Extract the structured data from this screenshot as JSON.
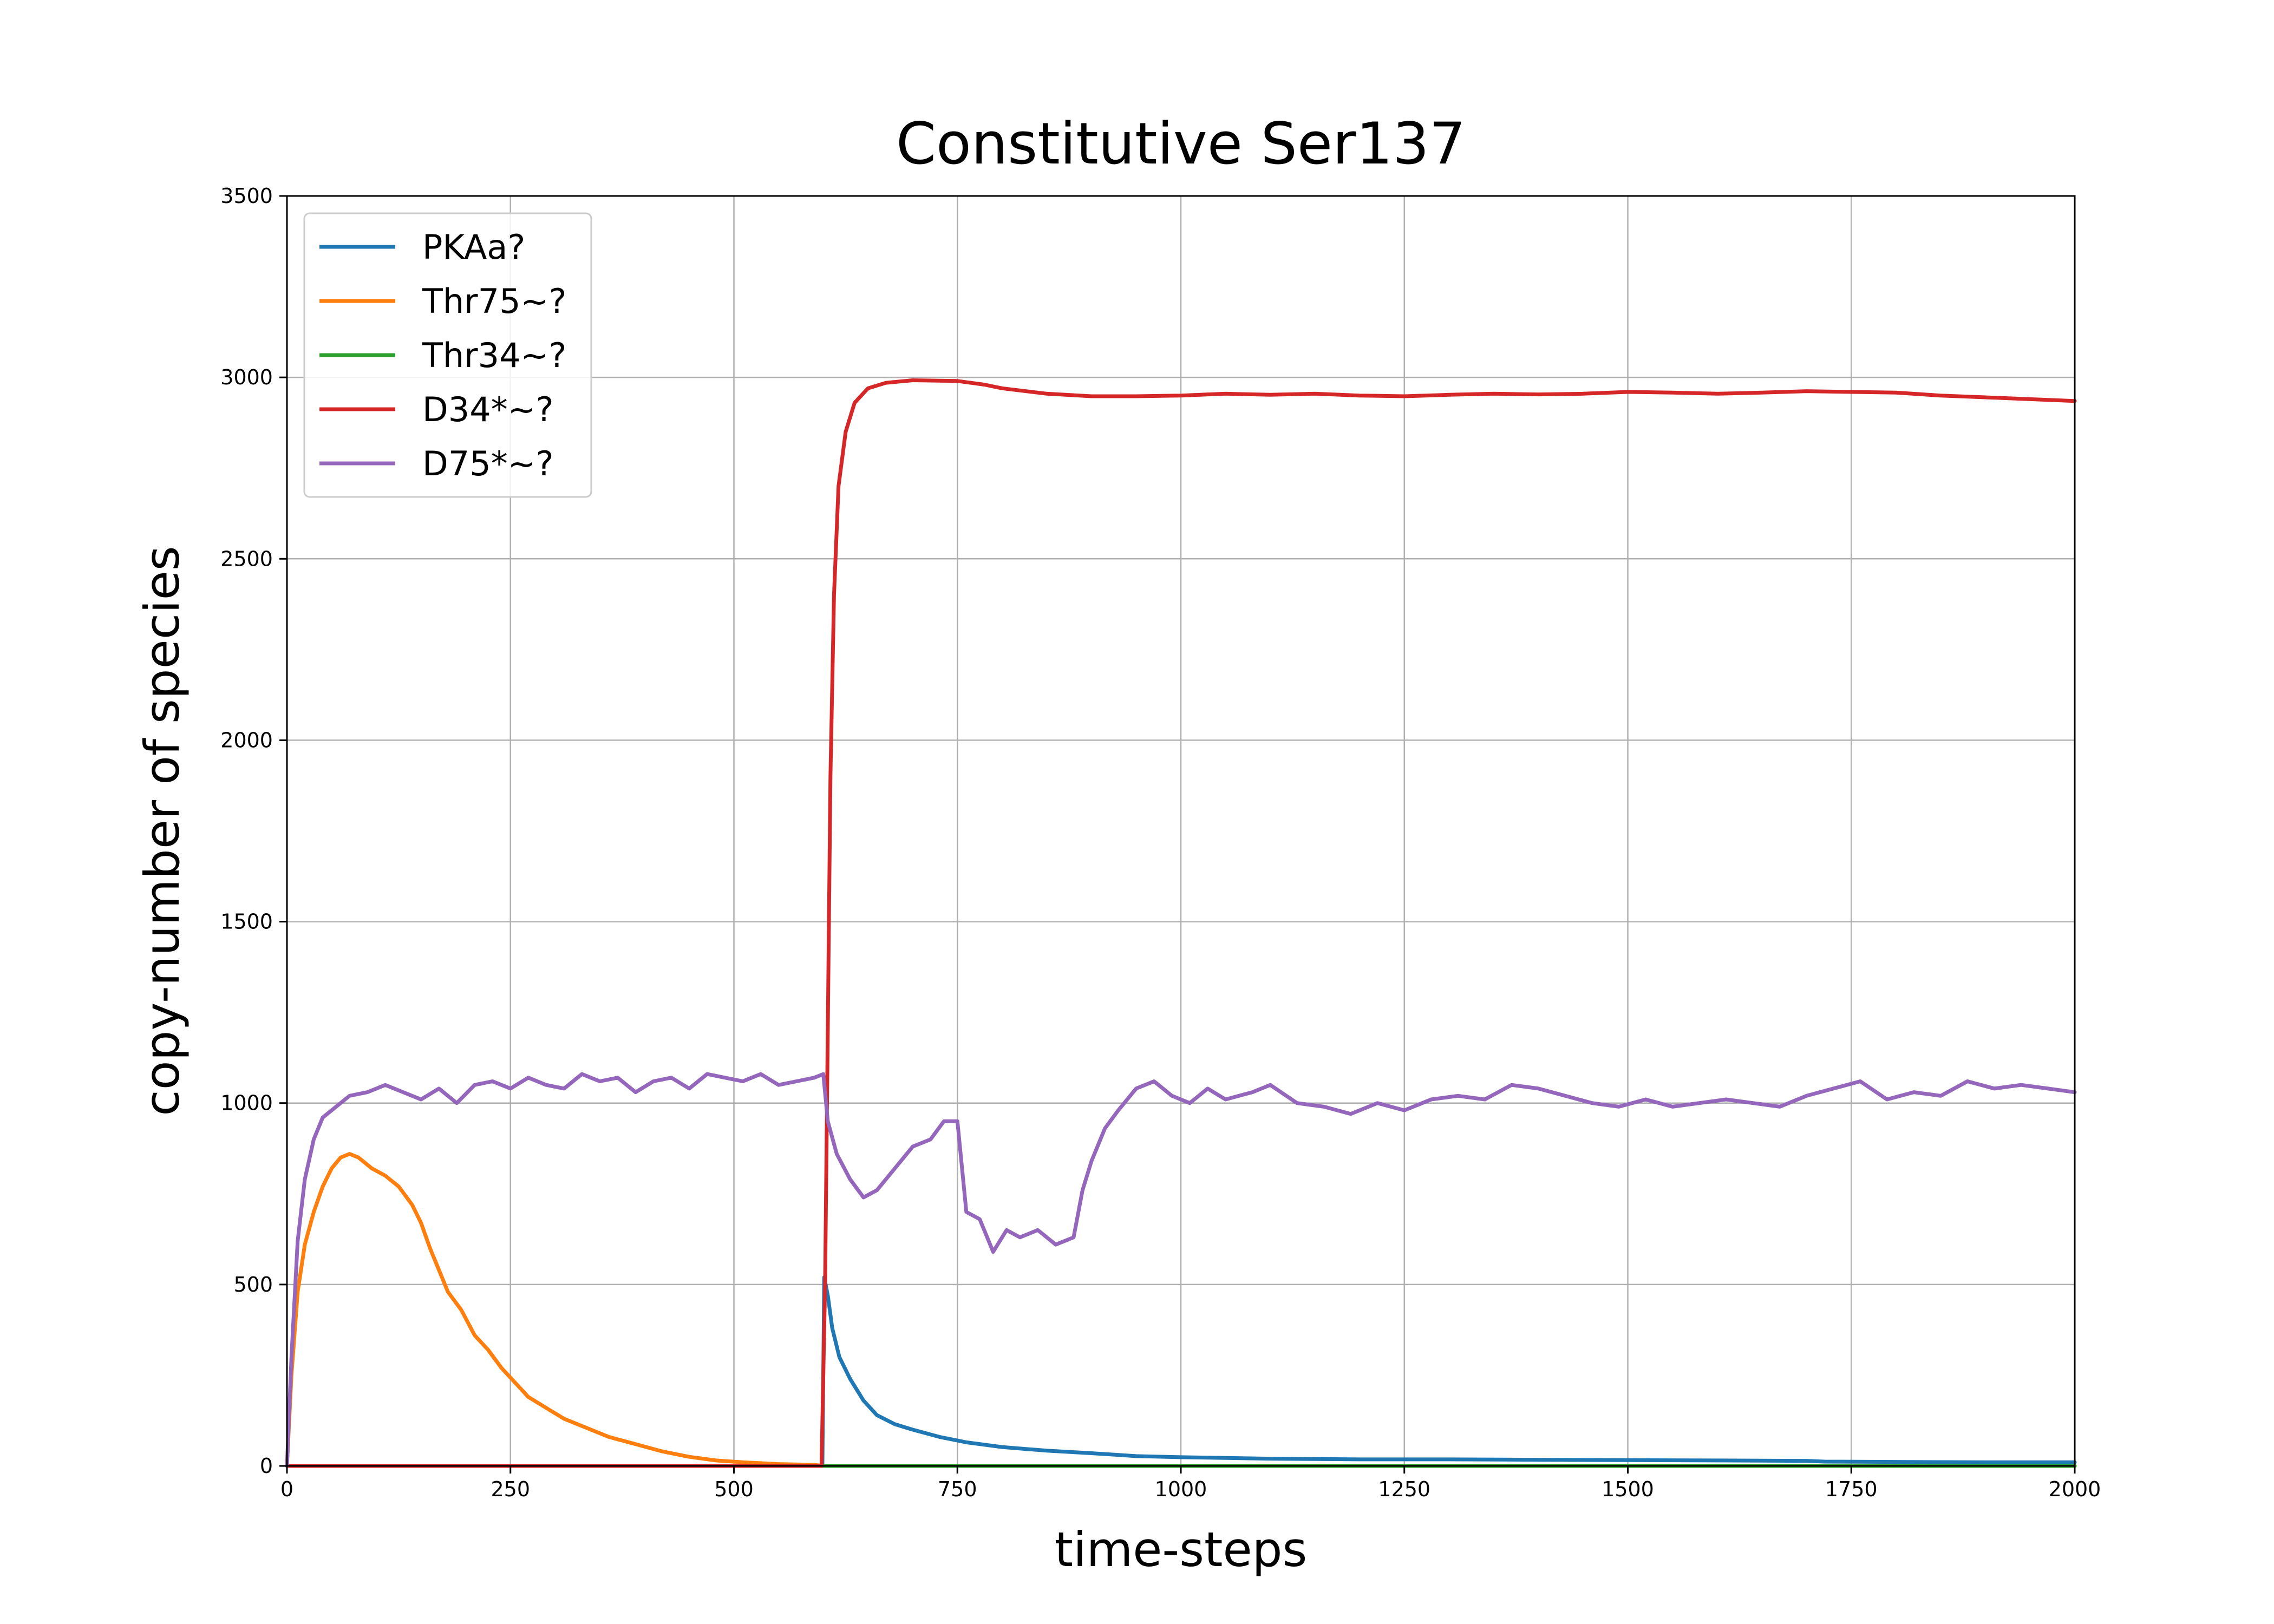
{
  "chart_data": {
    "type": "line",
    "title": "Constitutive Ser137",
    "xlabel": "time-steps",
    "ylabel": "copy-number of species",
    "xlim": [
      0,
      2000
    ],
    "ylim": [
      0,
      3500
    ],
    "xticks": [
      "0",
      "250",
      "500",
      "750",
      "1000",
      "1250",
      "1500",
      "1750",
      "2000"
    ],
    "yticks": [
      "0",
      "500",
      "1000",
      "1500",
      "2000",
      "2500",
      "3000",
      "3500"
    ],
    "grid": true,
    "legend_position": "top-left",
    "series": [
      {
        "name": "PKAa?",
        "color": "#1f77b4",
        "points": [
          [
            0,
            0
          ],
          [
            599,
            0
          ],
          [
            601,
            520
          ],
          [
            605,
            470
          ],
          [
            610,
            380
          ],
          [
            618,
            300
          ],
          [
            630,
            240
          ],
          [
            645,
            180
          ],
          [
            660,
            140
          ],
          [
            680,
            115
          ],
          [
            700,
            100
          ],
          [
            730,
            80
          ],
          [
            760,
            65
          ],
          [
            800,
            52
          ],
          [
            850,
            42
          ],
          [
            900,
            35
          ],
          [
            950,
            27
          ],
          [
            1000,
            24
          ],
          [
            1100,
            20
          ],
          [
            1200,
            18
          ],
          [
            1300,
            18
          ],
          [
            1400,
            17
          ],
          [
            1500,
            16
          ],
          [
            1600,
            15
          ],
          [
            1700,
            14
          ],
          [
            1720,
            12
          ],
          [
            1800,
            11
          ],
          [
            1900,
            10
          ],
          [
            2000,
            10
          ]
        ]
      },
      {
        "name": "Thr75~?",
        "color": "#ff7f0e",
        "points": [
          [
            0,
            0
          ],
          [
            5,
            250
          ],
          [
            12,
            480
          ],
          [
            20,
            610
          ],
          [
            30,
            700
          ],
          [
            40,
            770
          ],
          [
            50,
            820
          ],
          [
            60,
            850
          ],
          [
            70,
            860
          ],
          [
            80,
            850
          ],
          [
            95,
            820
          ],
          [
            110,
            800
          ],
          [
            125,
            770
          ],
          [
            140,
            720
          ],
          [
            150,
            670
          ],
          [
            160,
            600
          ],
          [
            170,
            540
          ],
          [
            180,
            480
          ],
          [
            195,
            430
          ],
          [
            210,
            360
          ],
          [
            225,
            320
          ],
          [
            240,
            270
          ],
          [
            255,
            230
          ],
          [
            270,
            190
          ],
          [
            290,
            160
          ],
          [
            310,
            130
          ],
          [
            330,
            110
          ],
          [
            360,
            80
          ],
          [
            390,
            60
          ],
          [
            420,
            40
          ],
          [
            450,
            25
          ],
          [
            480,
            15
          ],
          [
            510,
            10
          ],
          [
            550,
            5
          ],
          [
            590,
            3
          ],
          [
            600,
            0
          ],
          [
            2000,
            0
          ]
        ]
      },
      {
        "name": "Thr34~?",
        "color": "#2ca02c",
        "points": [
          [
            0,
            0
          ],
          [
            2000,
            0
          ]
        ]
      },
      {
        "name": "D34*~?",
        "color": "#d62728",
        "points": [
          [
            0,
            0
          ],
          [
            598,
            0
          ],
          [
            602,
            500
          ],
          [
            605,
            1200
          ],
          [
            608,
            1900
          ],
          [
            612,
            2400
          ],
          [
            617,
            2700
          ],
          [
            625,
            2850
          ],
          [
            635,
            2930
          ],
          [
            650,
            2970
          ],
          [
            670,
            2985
          ],
          [
            700,
            2992
          ],
          [
            750,
            2990
          ],
          [
            780,
            2980
          ],
          [
            800,
            2970
          ],
          [
            850,
            2955
          ],
          [
            900,
            2948
          ],
          [
            950,
            2948
          ],
          [
            1000,
            2950
          ],
          [
            1050,
            2955
          ],
          [
            1100,
            2952
          ],
          [
            1150,
            2955
          ],
          [
            1200,
            2950
          ],
          [
            1250,
            2948
          ],
          [
            1300,
            2952
          ],
          [
            1350,
            2955
          ],
          [
            1400,
            2953
          ],
          [
            1450,
            2955
          ],
          [
            1500,
            2960
          ],
          [
            1550,
            2958
          ],
          [
            1600,
            2955
          ],
          [
            1650,
            2958
          ],
          [
            1700,
            2962
          ],
          [
            1750,
            2960
          ],
          [
            1800,
            2958
          ],
          [
            1850,
            2950
          ],
          [
            1900,
            2945
          ],
          [
            1950,
            2940
          ],
          [
            2000,
            2935
          ]
        ]
      },
      {
        "name": "D75*~?",
        "color": "#9467bd",
        "points": [
          [
            0,
            0
          ],
          [
            5,
            300
          ],
          [
            12,
            620
          ],
          [
            20,
            790
          ],
          [
            30,
            900
          ],
          [
            40,
            960
          ],
          [
            55,
            990
          ],
          [
            70,
            1020
          ],
          [
            90,
            1030
          ],
          [
            110,
            1050
          ],
          [
            130,
            1030
          ],
          [
            150,
            1010
          ],
          [
            170,
            1040
          ],
          [
            190,
            1000
          ],
          [
            210,
            1050
          ],
          [
            230,
            1060
          ],
          [
            250,
            1040
          ],
          [
            270,
            1070
          ],
          [
            290,
            1050
          ],
          [
            310,
            1040
          ],
          [
            330,
            1080
          ],
          [
            350,
            1060
          ],
          [
            370,
            1070
          ],
          [
            390,
            1030
          ],
          [
            410,
            1060
          ],
          [
            430,
            1070
          ],
          [
            450,
            1040
          ],
          [
            470,
            1080
          ],
          [
            490,
            1070
          ],
          [
            510,
            1060
          ],
          [
            530,
            1080
          ],
          [
            550,
            1050
          ],
          [
            570,
            1060
          ],
          [
            590,
            1070
          ],
          [
            600,
            1080
          ],
          [
            605,
            950
          ],
          [
            615,
            860
          ],
          [
            630,
            790
          ],
          [
            645,
            740
          ],
          [
            660,
            760
          ],
          [
            680,
            820
          ],
          [
            700,
            880
          ],
          [
            720,
            900
          ],
          [
            735,
            950
          ],
          [
            750,
            950
          ],
          [
            760,
            700
          ],
          [
            775,
            680
          ],
          [
            790,
            590
          ],
          [
            805,
            650
          ],
          [
            820,
            630
          ],
          [
            840,
            650
          ],
          [
            860,
            610
          ],
          [
            880,
            630
          ],
          [
            890,
            760
          ],
          [
            900,
            840
          ],
          [
            915,
            930
          ],
          [
            930,
            980
          ],
          [
            950,
            1040
          ],
          [
            970,
            1060
          ],
          [
            990,
            1020
          ],
          [
            1010,
            1000
          ],
          [
            1030,
            1040
          ],
          [
            1050,
            1010
          ],
          [
            1080,
            1030
          ],
          [
            1100,
            1050
          ],
          [
            1130,
            1000
          ],
          [
            1160,
            990
          ],
          [
            1190,
            970
          ],
          [
            1220,
            1000
          ],
          [
            1250,
            980
          ],
          [
            1280,
            1010
          ],
          [
            1310,
            1020
          ],
          [
            1340,
            1010
          ],
          [
            1370,
            1050
          ],
          [
            1400,
            1040
          ],
          [
            1430,
            1020
          ],
          [
            1460,
            1000
          ],
          [
            1490,
            990
          ],
          [
            1520,
            1010
          ],
          [
            1550,
            990
          ],
          [
            1580,
            1000
          ],
          [
            1610,
            1010
          ],
          [
            1640,
            1000
          ],
          [
            1670,
            990
          ],
          [
            1700,
            1020
          ],
          [
            1730,
            1040
          ],
          [
            1760,
            1060
          ],
          [
            1790,
            1010
          ],
          [
            1820,
            1030
          ],
          [
            1850,
            1020
          ],
          [
            1880,
            1060
          ],
          [
            1910,
            1040
          ],
          [
            1940,
            1050
          ],
          [
            1970,
            1040
          ],
          [
            2000,
            1030
          ]
        ]
      }
    ]
  }
}
